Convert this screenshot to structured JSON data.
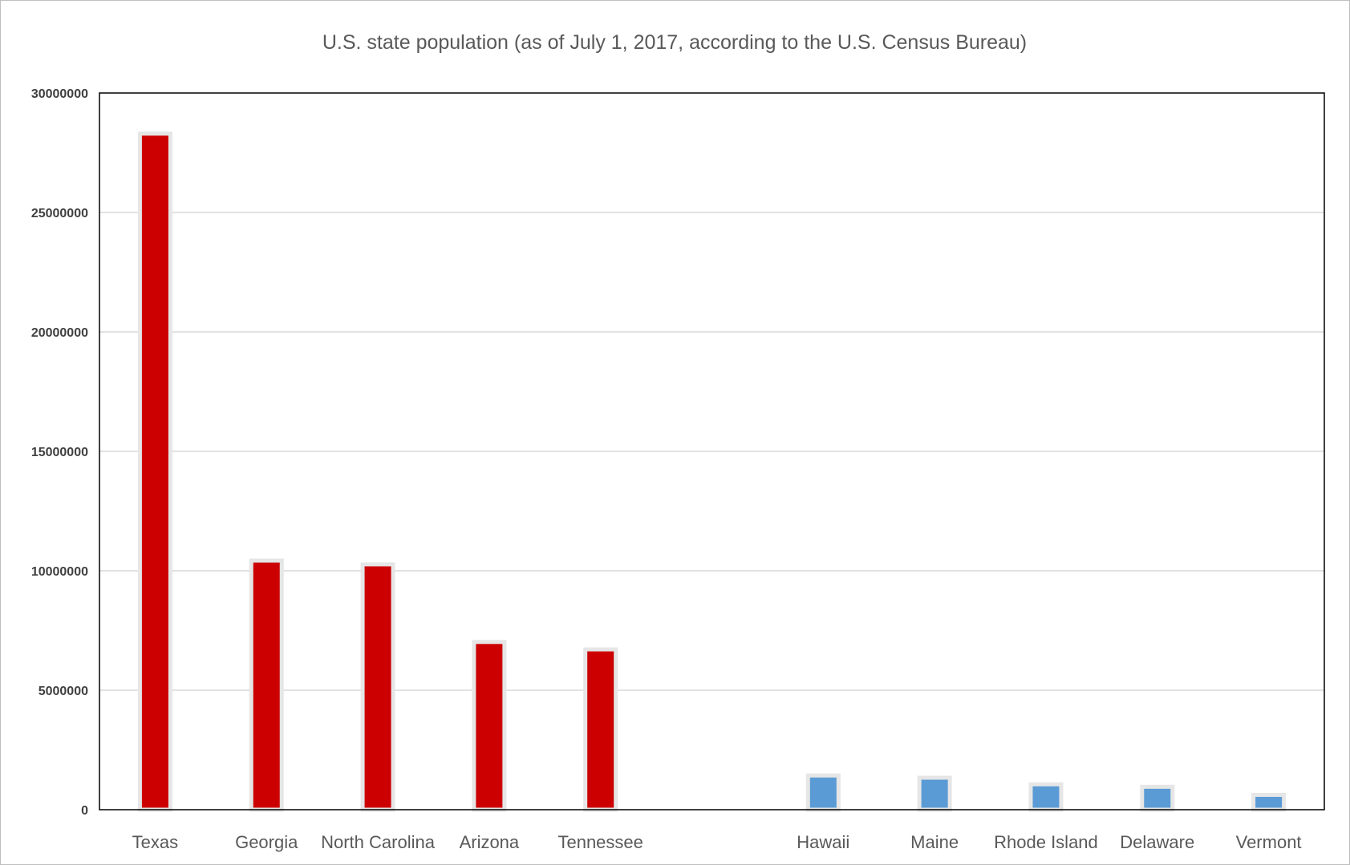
{
  "chart_data": {
    "type": "bar",
    "title": "U.S. state population (as of July 1, 2017, according to the U.S. Census Bureau)",
    "xlabel": "",
    "ylabel": "",
    "ylim": [
      0,
      30000000
    ],
    "yticks": [
      0,
      5000000,
      10000000,
      15000000,
      20000000,
      25000000,
      30000000
    ],
    "ytick_labels": [
      "0",
      "5000000",
      "10000000",
      "15000000",
      "20000000",
      "25000000",
      "30000000"
    ],
    "grid": true,
    "legend": "none",
    "categories": [
      "Texas",
      "Georgia",
      "North Carolina",
      "Arizona",
      "Tennessee",
      "",
      "Hawaii",
      "Maine",
      "Rhode Island",
      "Delaware",
      "Vermont"
    ],
    "values": [
      28300000,
      10430000,
      10270000,
      7020000,
      6710000,
      null,
      1430000,
      1340000,
      1060000,
      960000,
      620000
    ],
    "bar_colors": [
      "#cc0000",
      "#cc0000",
      "#cc0000",
      "#cc0000",
      "#cc0000",
      null,
      "#5b9bd5",
      "#5b9bd5",
      "#5b9bd5",
      "#5b9bd5",
      "#5b9bd5"
    ],
    "bar_outline_color": "#e6e6e6"
  }
}
